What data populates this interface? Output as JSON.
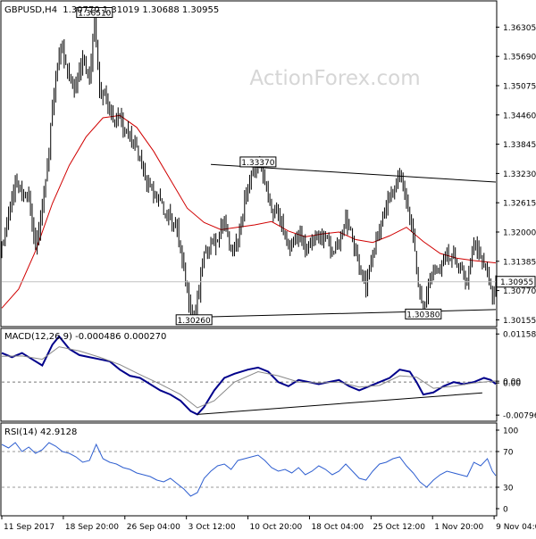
{
  "header": {
    "symbol": "GBPUSD,H4",
    "ohlc": "1.30770 1.31019 1.30688 1.30955",
    "watermark": "ActionForex.com"
  },
  "chart_data": [
    {
      "type": "candlestick",
      "title": "GBPUSD,H4  1.30770 1.31019 1.30688 1.30955",
      "x_ticks": [
        "11 Sep 2017",
        "18 Sep 20:00",
        "26 Sep 04:00",
        "3 Oct 12:00",
        "10 Oct 20:00",
        "18 Oct 04:00",
        "25 Oct 12:00",
        "1 Nov 20:00",
        "9 Nov 04:00"
      ],
      "y_ticks": [
        "1.36305",
        "1.35690",
        "1.35075",
        "1.34460",
        "1.33845",
        "1.33230",
        "1.32615",
        "1.32000",
        "1.31385",
        "1.30770",
        "1.30155"
      ],
      "ylim": [
        1.3005,
        1.368
      ],
      "last_price": "1.30955",
      "price_close_path": [
        [
          0,
          1.3163
        ],
        [
          4,
          1.3235
        ],
        [
          8,
          1.331
        ],
        [
          12,
          1.329
        ],
        [
          16,
          1.3265
        ],
        [
          20,
          1.316
        ],
        [
          24,
          1.326
        ],
        [
          28,
          1.338
        ],
        [
          31,
          1.349
        ],
        [
          34,
          1.3561
        ],
        [
          36,
          1.358
        ],
        [
          40,
          1.353
        ],
        [
          44,
          1.35
        ],
        [
          48,
          1.356
        ],
        [
          52,
          1.352
        ],
        [
          55,
          1.3651
        ],
        [
          58,
          1.35
        ],
        [
          62,
          1.347
        ],
        [
          66,
          1.344
        ],
        [
          70,
          1.345
        ],
        [
          74,
          1.341
        ],
        [
          78,
          1.3385
        ],
        [
          82,
          1.336
        ],
        [
          86,
          1.331
        ],
        [
          90,
          1.328
        ],
        [
          95,
          1.325
        ],
        [
          100,
          1.324
        ],
        [
          104,
          1.32
        ],
        [
          108,
          1.311
        ],
        [
          111,
          1.306
        ],
        [
          114,
          1.3026
        ],
        [
          117,
          1.308
        ],
        [
          120,
          1.315
        ],
        [
          124,
          1.317
        ],
        [
          128,
          1.319
        ],
        [
          132,
          1.323
        ],
        [
          136,
          1.315
        ],
        [
          140,
          1.318
        ],
        [
          144,
          1.327
        ],
        [
          148,
          1.332
        ],
        [
          152,
          1.3337
        ],
        [
          156,
          1.331
        ],
        [
          160,
          1.325
        ],
        [
          164,
          1.324
        ],
        [
          168,
          1.318
        ],
        [
          172,
          1.317
        ],
        [
          176,
          1.321
        ],
        [
          180,
          1.315
        ],
        [
          184,
          1.318
        ],
        [
          188,
          1.32
        ],
        [
          192,
          1.319
        ],
        [
          196,
          1.315
        ],
        [
          200,
          1.318
        ],
        [
          204,
          1.323
        ],
        [
          208,
          1.318
        ],
        [
          212,
          1.312
        ],
        [
          216,
          1.309
        ],
        [
          220,
          1.316
        ],
        [
          224,
          1.32
        ],
        [
          228,
          1.325
        ],
        [
          232,
          1.329
        ],
        [
          236,
          1.333
        ],
        [
          240,
          1.326
        ],
        [
          244,
          1.32
        ],
        [
          247,
          1.309
        ],
        [
          250,
          1.3038
        ],
        [
          253,
          1.308
        ],
        [
          256,
          1.311
        ],
        [
          260,
          1.313
        ],
        [
          264,
          1.316
        ],
        [
          268,
          1.314
        ],
        [
          272,
          1.312
        ],
        [
          276,
          1.31
        ],
        [
          280,
          1.318
        ],
        [
          284,
          1.314
        ],
        [
          288,
          1.312
        ],
        [
          291,
          1.307
        ],
        [
          293,
          1.30955
        ]
      ],
      "moving_average_path": [
        [
          0,
          1.304
        ],
        [
          10,
          1.308
        ],
        [
          20,
          1.316
        ],
        [
          30,
          1.326
        ],
        [
          40,
          1.334
        ],
        [
          50,
          1.34
        ],
        [
          60,
          1.344
        ],
        [
          70,
          1.3445
        ],
        [
          80,
          1.342
        ],
        [
          90,
          1.337
        ],
        [
          100,
          1.331
        ],
        [
          110,
          1.325
        ],
        [
          120,
          1.322
        ],
        [
          130,
          1.3205
        ],
        [
          140,
          1.321
        ],
        [
          150,
          1.3215
        ],
        [
          160,
          1.3222
        ],
        [
          170,
          1.3202
        ],
        [
          180,
          1.319
        ],
        [
          190,
          1.3196
        ],
        [
          200,
          1.32
        ],
        [
          210,
          1.3184
        ],
        [
          220,
          1.3178
        ],
        [
          230,
          1.3192
        ],
        [
          240,
          1.321
        ],
        [
          250,
          1.318
        ],
        [
          260,
          1.3155
        ],
        [
          270,
          1.3145
        ],
        [
          280,
          1.314
        ],
        [
          293,
          1.3135
        ]
      ],
      "annotations": [
        {
          "label": "1.36510",
          "x": 55,
          "price": 1.3651
        },
        {
          "label": "1.33370",
          "x": 152,
          "price": 1.3337
        },
        {
          "label": "1.30260",
          "x": 114,
          "price": 1.3026
        },
        {
          "label": "1.30380",
          "x": 250,
          "price": 1.3038
        }
      ],
      "trendlines": [
        {
          "name": "upper",
          "from": [
            124,
            1.3342
          ],
          "to": [
            293,
            1.3305
          ]
        },
        {
          "name": "lower",
          "from": [
            114,
            1.3021
          ],
          "to": [
            293,
            1.3037
          ]
        }
      ]
    },
    {
      "type": "line",
      "title": "MACD(12,26,9) -0.000486 0.000270",
      "y_ticks": [
        "0.011588",
        "0.00",
        "0.00",
        "-0.007961"
      ],
      "ylim": [
        -0.009,
        0.0125
      ],
      "series": [
        {
          "name": "MACD",
          "color": "#00008b",
          "values": [
            [
              0,
              0.007
            ],
            [
              6,
              0.006
            ],
            [
              12,
              0.007
            ],
            [
              18,
              0.0055
            ],
            [
              24,
              0.004
            ],
            [
              30,
              0.009
            ],
            [
              34,
              0.011
            ],
            [
              40,
              0.008
            ],
            [
              46,
              0.0065
            ],
            [
              52,
              0.006
            ],
            [
              58,
              0.0055
            ],
            [
              64,
              0.005
            ],
            [
              70,
              0.003
            ],
            [
              76,
              0.0015
            ],
            [
              82,
              0.001
            ],
            [
              88,
              -0.0005
            ],
            [
              94,
              -0.002
            ],
            [
              100,
              -0.003
            ],
            [
              106,
              -0.0045
            ],
            [
              112,
              -0.007
            ],
            [
              116,
              -0.0078
            ],
            [
              120,
              -0.006
            ],
            [
              126,
              -0.002
            ],
            [
              132,
              0.001
            ],
            [
              138,
              0.002
            ],
            [
              146,
              0.003
            ],
            [
              152,
              0.0035
            ],
            [
              158,
              0.0025
            ],
            [
              164,
              0.0
            ],
            [
              170,
              -0.001
            ],
            [
              176,
              0.0005
            ],
            [
              182,
              0.0
            ],
            [
              188,
              -0.0005
            ],
            [
              194,
              0.0
            ],
            [
              200,
              0.0005
            ],
            [
              206,
              -0.001
            ],
            [
              212,
              -0.002
            ],
            [
              218,
              -0.001
            ],
            [
              224,
              0.0
            ],
            [
              230,
              0.001
            ],
            [
              236,
              0.003
            ],
            [
              242,
              0.0025
            ],
            [
              246,
              0.0
            ],
            [
              250,
              -0.003
            ],
            [
              256,
              -0.0025
            ],
            [
              262,
              -0.001
            ],
            [
              268,
              0.0
            ],
            [
              274,
              -0.0005
            ],
            [
              280,
              0.0
            ],
            [
              286,
              0.001
            ],
            [
              290,
              0.0005
            ],
            [
              293,
              -0.000486
            ]
          ]
        },
        {
          "name": "Signal",
          "color": "#888888",
          "values": [
            [
              0,
              0.0062
            ],
            [
              12,
              0.0063
            ],
            [
              24,
              0.0055
            ],
            [
              34,
              0.0085
            ],
            [
              46,
              0.0075
            ],
            [
              58,
              0.006
            ],
            [
              70,
              0.0042
            ],
            [
              82,
              0.0018
            ],
            [
              94,
              -0.0005
            ],
            [
              106,
              -0.003
            ],
            [
              116,
              -0.0062
            ],
            [
              126,
              -0.0045
            ],
            [
              138,
              0.0
            ],
            [
              152,
              0.0025
            ],
            [
              164,
              0.0015
            ],
            [
              176,
              0.0
            ],
            [
              188,
              -0.0002
            ],
            [
              200,
              0.0
            ],
            [
              212,
              -0.0012
            ],
            [
              224,
              -0.0008
            ],
            [
              236,
              0.0015
            ],
            [
              246,
              0.0012
            ],
            [
              256,
              -0.0015
            ],
            [
              268,
              -0.001
            ],
            [
              280,
              -0.0002
            ],
            [
              293,
              0.00027
            ]
          ]
        }
      ]
    },
    {
      "type": "line",
      "title": "RSI(14) 42.9128",
      "y_ticks": [
        "100",
        "70",
        "30",
        "0"
      ],
      "ylim": [
        0,
        100
      ],
      "series": [
        {
          "name": "RSI",
          "color": "#2f5fd0",
          "values": [
            [
              0,
              78
            ],
            [
              4,
              74
            ],
            [
              8,
              80
            ],
            [
              12,
              70
            ],
            [
              16,
              75
            ],
            [
              20,
              68
            ],
            [
              24,
              72
            ],
            [
              28,
              80
            ],
            [
              32,
              76
            ],
            [
              36,
              70
            ],
            [
              40,
              68
            ],
            [
              44,
              64
            ],
            [
              48,
              58
            ],
            [
              52,
              60
            ],
            [
              56,
              78
            ],
            [
              60,
              62
            ],
            [
              64,
              58
            ],
            [
              68,
              56
            ],
            [
              72,
              52
            ],
            [
              76,
              50
            ],
            [
              80,
              46
            ],
            [
              84,
              44
            ],
            [
              88,
              42
            ],
            [
              92,
              38
            ],
            [
              96,
              36
            ],
            [
              100,
              40
            ],
            [
              104,
              34
            ],
            [
              108,
              28
            ],
            [
              112,
              20
            ],
            [
              116,
              24
            ],
            [
              120,
              40
            ],
            [
              124,
              48
            ],
            [
              128,
              54
            ],
            [
              132,
              56
            ],
            [
              136,
              50
            ],
            [
              140,
              60
            ],
            [
              144,
              62
            ],
            [
              148,
              64
            ],
            [
              152,
              66
            ],
            [
              156,
              60
            ],
            [
              160,
              52
            ],
            [
              164,
              48
            ],
            [
              168,
              50
            ],
            [
              172,
              46
            ],
            [
              176,
              52
            ],
            [
              180,
              44
            ],
            [
              184,
              48
            ],
            [
              188,
              54
            ],
            [
              192,
              50
            ],
            [
              196,
              44
            ],
            [
              200,
              48
            ],
            [
              204,
              56
            ],
            [
              208,
              48
            ],
            [
              212,
              40
            ],
            [
              216,
              38
            ],
            [
              220,
              48
            ],
            [
              224,
              56
            ],
            [
              228,
              58
            ],
            [
              232,
              62
            ],
            [
              236,
              64
            ],
            [
              240,
              54
            ],
            [
              244,
              46
            ],
            [
              248,
              36
            ],
            [
              252,
              30
            ],
            [
              256,
              38
            ],
            [
              260,
              44
            ],
            [
              264,
              48
            ],
            [
              268,
              46
            ],
            [
              272,
              44
            ],
            [
              276,
              42
            ],
            [
              280,
              58
            ],
            [
              284,
              54
            ],
            [
              288,
              62
            ],
            [
              291,
              48
            ],
            [
              293,
              42.9
            ]
          ]
        }
      ],
      "reference_lines": [
        70,
        30
      ]
    }
  ]
}
